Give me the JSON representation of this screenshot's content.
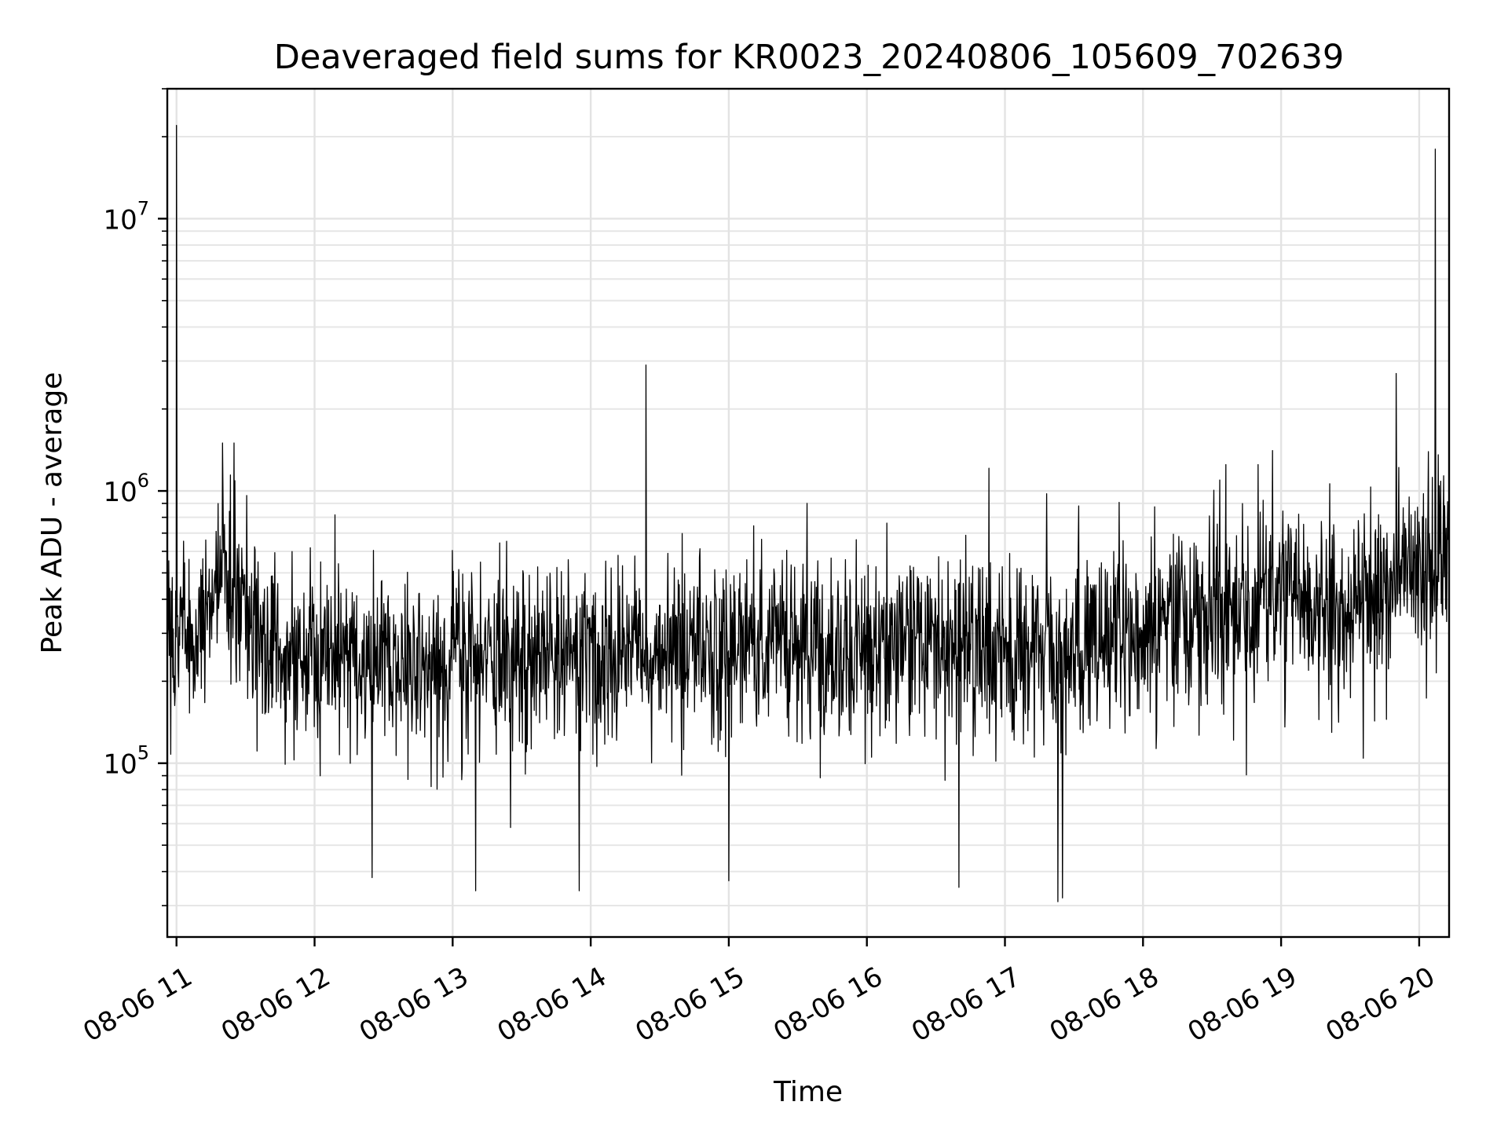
{
  "chart_data": {
    "type": "line",
    "title": "Deaveraged field sums for KR0023_20240806_105609_702639",
    "xlabel": "Time",
    "ylabel": "Peak ADU - average",
    "yscale": "log",
    "ylim": [
      23000,
      30000000
    ],
    "xlim": [
      "08-06 10:56",
      "08-06 20:13"
    ],
    "grid": true,
    "line_color": "#000000",
    "x_ticks": [
      "08-06 11",
      "08-06 12",
      "08-06 13",
      "08-06 14",
      "08-06 15",
      "08-06 16",
      "08-06 17",
      "08-06 18",
      "08-06 19",
      "08-06 20"
    ],
    "y_ticks": [
      {
        "base": "10",
        "exp": "5",
        "value": 100000
      },
      {
        "base": "10",
        "exp": "6",
        "value": 1000000
      },
      {
        "base": "10",
        "exp": "7",
        "value": 10000000
      }
    ],
    "series": [
      {
        "baseline": [
          {
            "t": "08-06 10:56",
            "y": 300000
          },
          {
            "t": "08-06 11:10",
            "y": 300000
          },
          {
            "t": "08-06 11:20",
            "y": 600000
          },
          {
            "t": "08-06 11:25",
            "y": 420000
          },
          {
            "t": "08-06 11:40",
            "y": 280000
          },
          {
            "t": "08-06 12:30",
            "y": 230000
          },
          {
            "t": "08-06 13:30",
            "y": 250000
          },
          {
            "t": "08-06 14:30",
            "y": 270000
          },
          {
            "t": "08-06 15:30",
            "y": 270000
          },
          {
            "t": "08-06 16:30",
            "y": 260000
          },
          {
            "t": "08-06 17:30",
            "y": 250000
          },
          {
            "t": "08-06 18:00",
            "y": 300000
          },
          {
            "t": "08-06 18:30",
            "y": 380000
          },
          {
            "t": "08-06 19:00",
            "y": 420000
          },
          {
            "t": "08-06 19:30",
            "y": 350000
          },
          {
            "t": "08-06 19:50",
            "y": 500000
          },
          {
            "t": "08-06 20:13",
            "y": 600000
          }
        ],
        "peaks": [
          {
            "t": "08-06 11:00",
            "y": 22000000
          },
          {
            "t": "08-06 11:20",
            "y": 1500000
          },
          {
            "t": "08-06 11:25",
            "y": 1500000
          },
          {
            "t": "08-06 14:24",
            "y": 2900000
          },
          {
            "t": "08-06 15:34",
            "y": 900000
          },
          {
            "t": "08-06 18:36",
            "y": 1250000
          },
          {
            "t": "08-06 18:50",
            "y": 1250000
          },
          {
            "t": "08-06 19:50",
            "y": 2700000
          },
          {
            "t": "08-06 20:07",
            "y": 18000000
          }
        ],
        "troughs": [
          {
            "t": "08-06 12:25",
            "y": 38000
          },
          {
            "t": "08-06 13:10",
            "y": 34000
          },
          {
            "t": "08-06 13:55",
            "y": 34000
          },
          {
            "t": "08-06 15:00",
            "y": 37000
          },
          {
            "t": "08-06 16:40",
            "y": 35000
          },
          {
            "t": "08-06 17:23",
            "y": 31000
          },
          {
            "t": "08-06 17:25",
            "y": 32000
          }
        ]
      }
    ]
  }
}
